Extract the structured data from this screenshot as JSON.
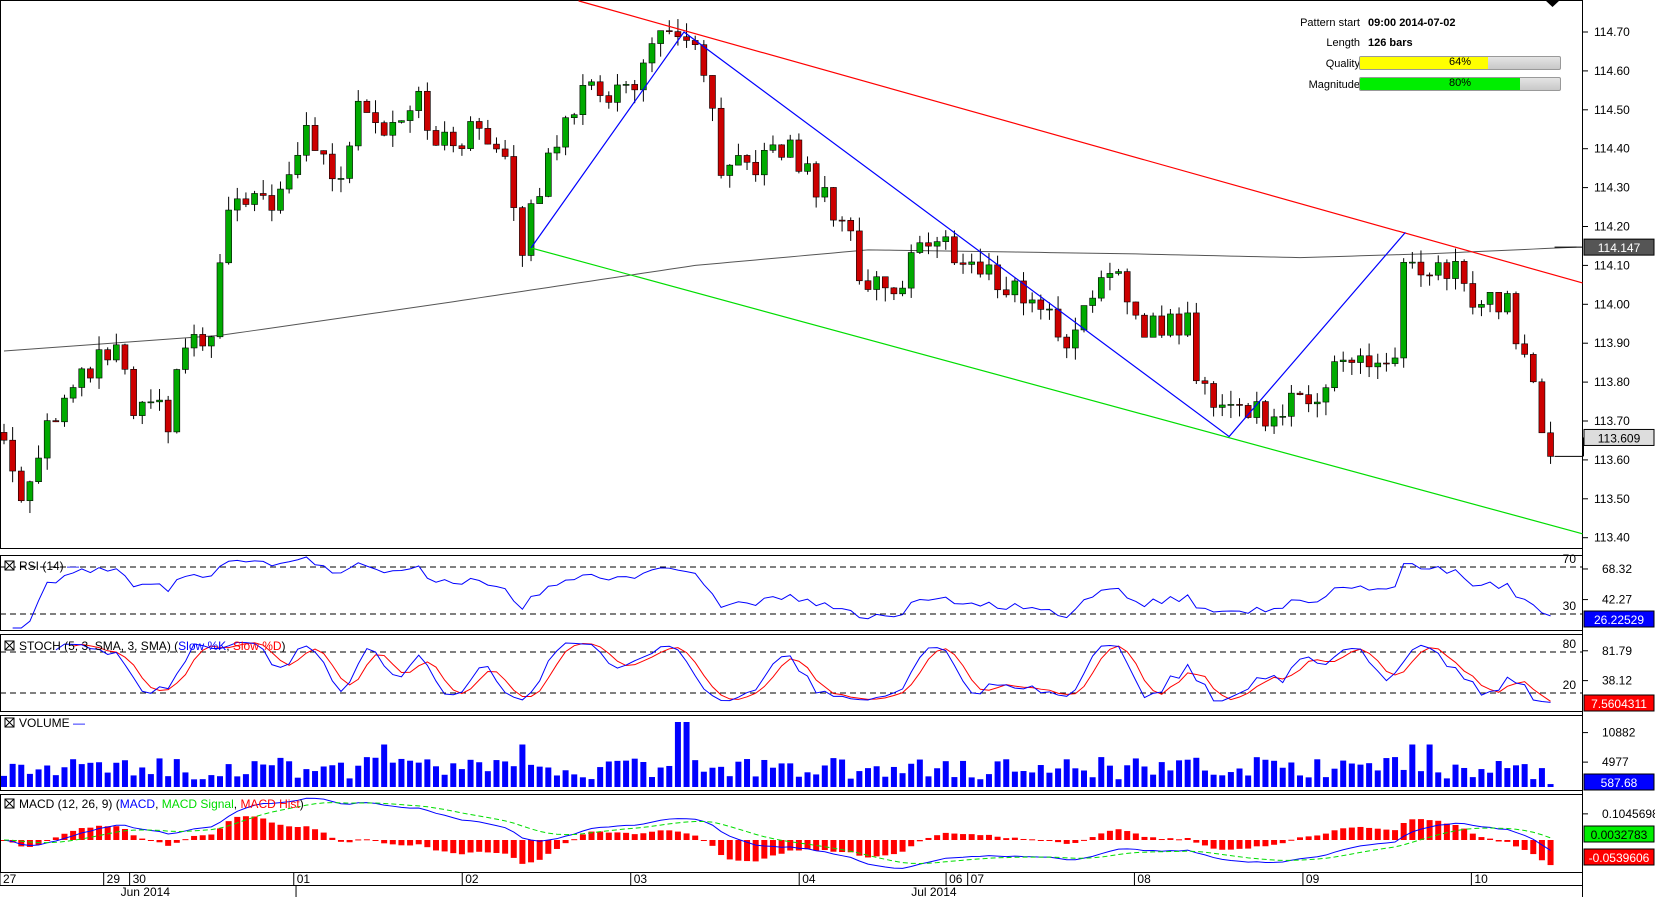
{
  "pattern_info": {
    "pattern_start_label": "Pattern start",
    "pattern_start_value": "09:00 2014-07-02",
    "length_label": "Length",
    "length_value": "126 bars",
    "quality_label": "Quality",
    "quality_value": "64%",
    "quality_pct": 64,
    "magnitude_label": "Magnitude",
    "magnitude_value": "80%",
    "magnitude_pct": 80,
    "quality_color": "#ffff00",
    "magnitude_color": "#00ee00"
  },
  "chart_data": {
    "type": "candlestick",
    "instrument_note": "hourly candles",
    "bar_count": 180,
    "price_axis": {
      "ylim": [
        113.4,
        114.75
      ],
      "ticks": [
        "114.70",
        "114.60",
        "114.50",
        "114.40",
        "114.30",
        "114.20",
        "114.10",
        "114.00",
        "113.90",
        "113.80",
        "113.70",
        "113.60",
        "113.50",
        "113.40"
      ],
      "current_price_label": "113.609",
      "current_price": 113.609,
      "ma_label": "114.147",
      "ma_value": 114.147
    },
    "close_anchors": [
      [
        0,
        113.65
      ],
      [
        2,
        113.5
      ],
      [
        5,
        113.7
      ],
      [
        7,
        113.75
      ],
      [
        11,
        113.85
      ],
      [
        13,
        113.88
      ],
      [
        15,
        113.72
      ],
      [
        18,
        113.72
      ],
      [
        19,
        113.7
      ],
      [
        21,
        113.9
      ],
      [
        24,
        113.9
      ],
      [
        26,
        114.25
      ],
      [
        29,
        114.25
      ],
      [
        33,
        114.3
      ],
      [
        35,
        114.45
      ],
      [
        39,
        114.3
      ],
      [
        41,
        114.55
      ],
      [
        44,
        114.45
      ],
      [
        48,
        114.55
      ],
      [
        50,
        114.4
      ],
      [
        55,
        114.45
      ],
      [
        58,
        114.4
      ],
      [
        60,
        114.15
      ],
      [
        62,
        114.3
      ],
      [
        65,
        114.5
      ],
      [
        68,
        114.55
      ],
      [
        73,
        114.55
      ],
      [
        74,
        114.65
      ],
      [
        79,
        114.7
      ],
      [
        82,
        114.5
      ],
      [
        83,
        114.3
      ],
      [
        85,
        114.35
      ],
      [
        91,
        114.4
      ],
      [
        94,
        114.3
      ],
      [
        98,
        114.2
      ],
      [
        99,
        114.05
      ],
      [
        104,
        114.05
      ],
      [
        105,
        114.15
      ],
      [
        109,
        114.15
      ],
      [
        112,
        114.1
      ],
      [
        116,
        114.05
      ],
      [
        120,
        114.0
      ],
      [
        123,
        113.9
      ],
      [
        126,
        114.05
      ],
      [
        129,
        114.05
      ],
      [
        132,
        113.95
      ],
      [
        137,
        113.95
      ],
      [
        138,
        113.8
      ],
      [
        141,
        113.75
      ],
      [
        146,
        113.72
      ],
      [
        151,
        113.75
      ],
      [
        154,
        113.85
      ],
      [
        157,
        113.85
      ],
      [
        161,
        113.85
      ],
      [
        162,
        114.1
      ],
      [
        164,
        114.05
      ],
      [
        168,
        114.1
      ],
      [
        170,
        114.0
      ],
      [
        174,
        114.0
      ],
      [
        177,
        113.8
      ],
      [
        178,
        113.65
      ],
      [
        179,
        113.61
      ]
    ],
    "ma_anchors": [
      [
        0,
        113.88
      ],
      [
        25,
        113.92
      ],
      [
        50,
        114.0
      ],
      [
        65,
        114.05
      ],
      [
        80,
        114.1
      ],
      [
        100,
        114.14
      ],
      [
        130,
        114.13
      ],
      [
        150,
        114.12
      ],
      [
        165,
        114.13
      ],
      [
        182,
        114.147
      ]
    ],
    "pattern_lines": {
      "resistance": {
        "color": "#ff0000",
        "points": [
          [
            66.5,
            114.78
          ],
          [
            182.7,
            114.055
          ]
        ]
      },
      "support": {
        "color": "#00dd00",
        "points": [
          [
            61,
            114.145
          ],
          [
            182.7,
            113.41
          ]
        ]
      },
      "zigzag": {
        "color": "#0000ff",
        "points": [
          [
            61,
            114.145
          ],
          [
            78.7,
            114.7
          ],
          [
            141.8,
            113.66
          ],
          [
            162.2,
            114.185
          ]
        ]
      }
    },
    "x_axis": {
      "day_labels": [
        {
          "bar": 0,
          "label": "27"
        },
        {
          "bar": 12,
          "label": "29"
        },
        {
          "bar": 15,
          "label": "30"
        },
        {
          "bar": 34,
          "label": "01"
        },
        {
          "bar": 53.5,
          "label": "02"
        },
        {
          "bar": 73,
          "label": "03"
        },
        {
          "bar": 92.5,
          "label": "04"
        },
        {
          "bar": 109.5,
          "label": "06"
        },
        {
          "bar": 112,
          "label": "07"
        },
        {
          "bar": 131.3,
          "label": "08"
        },
        {
          "bar": 150.8,
          "label": "09"
        },
        {
          "bar": 170.3,
          "label": "10"
        }
      ],
      "month_labels": [
        {
          "bar": 13.5,
          "label": "Jun 2014"
        },
        {
          "bar": 105,
          "label": "Jul 2014"
        }
      ],
      "month_divider_bar": 33.8
    },
    "indicators": {
      "rsi": {
        "title": "RSI (14)",
        "levels": [
          "70",
          "30"
        ],
        "ticks": [
          "68.32",
          "42.27"
        ],
        "last": "26.22529",
        "color": "#0000ff"
      },
      "stoch": {
        "title": "STOCH (5, 3, SMA, 3, SMA)",
        "k_label": "Slow %K",
        "d_label": "Slow %D",
        "levels": [
          "80",
          "20"
        ],
        "ticks": [
          "81.79",
          "38.12"
        ],
        "last": "7.5604311",
        "k_color": "#0000ff",
        "d_color": "#ff0000"
      },
      "volume": {
        "title": "VOLUME",
        "ticks": [
          "10882",
          "4977"
        ],
        "last": "587.68",
        "color": "#0000ff"
      },
      "macd": {
        "title": "MACD (12, 26, 9)",
        "macd_label": "MACD",
        "signal_label": "MACD Signal",
        "hist_label": "MACD Hist",
        "ticks": [
          "0.1045698"
        ],
        "last_signal": "0.0032783",
        "last_macd": "-0.0539606",
        "macd_color": "#0000ff",
        "signal_color": "#00dd00",
        "hist_color": "#ff0000"
      }
    }
  }
}
